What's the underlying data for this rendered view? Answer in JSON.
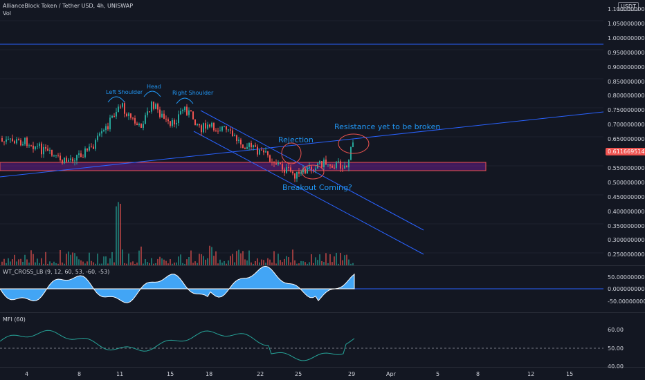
{
  "header": {
    "title": "AllianceBlock Token / Tether USD, 4h, UNISWAP",
    "vol": "Vol",
    "currency": "USDT"
  },
  "price_axis": [
    "1.1000000000",
    "1.0500000000",
    "1.0000000000",
    "0.9500000000",
    "0.9000000000",
    "0.8500000000",
    "0.8000000000",
    "0.7500000000",
    "0.7000000000",
    "0.6500000000",
    "0.6000000000",
    "0.5500000000",
    "0.5000000000",
    "0.4500000000",
    "0.4000000000",
    "0.3500000000",
    "0.3000000000",
    "0.2500000000"
  ],
  "last_price": "0.6116695149",
  "annotations": {
    "left_shoulder": "Left Shoulder",
    "head": "Head",
    "right_shoulder": "Right Shoulder",
    "rejection": "Rejection",
    "resistance": "Resistance yet to be broken",
    "breakout": "Breakout Coming?"
  },
  "wt": {
    "legend": "WT_CROSS_LB (9, 12, 60, 53, -60, -53)",
    "axis": [
      "50.0000000000",
      "0.0000000000",
      "-50.0000000000"
    ]
  },
  "mfi": {
    "legend": "MFI (60)",
    "axis": [
      "60.00",
      "50.00",
      "40.00"
    ]
  },
  "time_axis": [
    "4",
    "8",
    "11",
    "15",
    "18",
    "22",
    "25",
    "29",
    "Apr",
    "5",
    "8",
    "12",
    "15"
  ],
  "colors": {
    "up": "#26a69a",
    "down": "#ef5350",
    "blue": "#2196f3",
    "zone": "#7b1fa2"
  }
}
